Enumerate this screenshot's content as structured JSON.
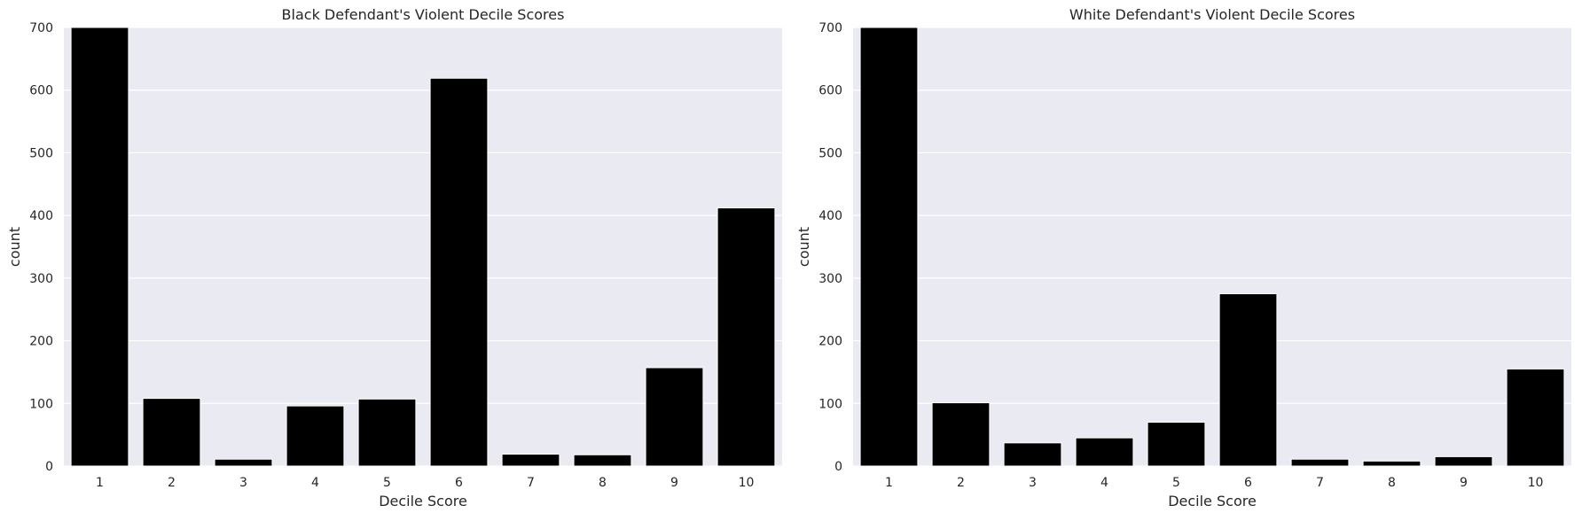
{
  "chart_data": [
    {
      "type": "bar",
      "title": "Black Defendant's Violent Decile Scores",
      "xlabel": "Decile Score",
      "ylabel": "count",
      "categories": [
        "1",
        "2",
        "3",
        "4",
        "5",
        "6",
        "7",
        "8",
        "9",
        "10"
      ],
      "values": [
        700,
        108,
        11,
        96,
        107,
        619,
        19,
        18,
        157,
        412
      ],
      "ylim": [
        0,
        700
      ],
      "yticks": [
        0,
        100,
        200,
        300,
        400,
        500,
        600,
        700
      ],
      "grid": true,
      "bar_color": "#000000",
      "background_color": "#eaeaf2"
    },
    {
      "type": "bar",
      "title": "White Defendant's Violent Decile Scores",
      "xlabel": "Decile Score",
      "ylabel": "count",
      "categories": [
        "1",
        "2",
        "3",
        "4",
        "5",
        "6",
        "7",
        "8",
        "9",
        "10"
      ],
      "values": [
        700,
        101,
        37,
        45,
        70,
        275,
        11,
        8,
        15,
        155
      ],
      "ylim": [
        0,
        700
      ],
      "yticks": [
        0,
        100,
        200,
        300,
        400,
        500,
        600,
        700
      ],
      "grid": true,
      "bar_color": "#000000",
      "background_color": "#eaeaf2"
    }
  ]
}
